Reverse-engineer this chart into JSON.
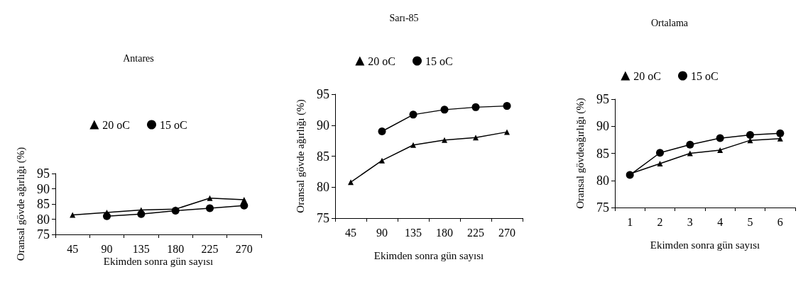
{
  "chart_data": [
    {
      "type": "line",
      "title": "Antares",
      "xlabel": "Ekimden sonra gün sayısı",
      "ylabel": "Oransal gövde ağırlığı (%)",
      "categories": [
        "45",
        "90",
        "135",
        "180",
        "225",
        "270"
      ],
      "ylim": [
        75,
        95
      ],
      "yticks": [
        75,
        80,
        85,
        90,
        95
      ],
      "grid": false,
      "legend": "top",
      "series": [
        {
          "name": "20 oC",
          "color": "#000000",
          "marker": "triangle",
          "values": [
            81.4,
            82.2,
            83.0,
            83.3,
            86.9,
            86.4
          ]
        },
        {
          "name": "15 oC",
          "color": "#000000",
          "marker": "circle",
          "values": [
            null,
            81.0,
            81.7,
            82.8,
            83.6,
            84.5
          ]
        }
      ]
    },
    {
      "type": "line",
      "title": "Sarı-85",
      "xlabel": "Ekimden sonra gün sayısı",
      "ylabel": "Oransal gövde ağırlığı (%)",
      "categories": [
        "45",
        "90",
        "135",
        "180",
        "225",
        "270"
      ],
      "ylim": [
        75,
        95
      ],
      "yticks": [
        75,
        80,
        85,
        90,
        95
      ],
      "grid": false,
      "legend": "top",
      "series": [
        {
          "name": "20 oC",
          "color": "#000000",
          "marker": "triangle",
          "values": [
            80.8,
            84.3,
            86.8,
            87.6,
            88.0,
            88.9
          ]
        },
        {
          "name": "15 oC",
          "color": "#000000",
          "marker": "circle",
          "values": [
            null,
            89.0,
            91.7,
            92.5,
            92.9,
            93.1
          ]
        }
      ]
    },
    {
      "type": "line",
      "title": "Ortalama",
      "xlabel": "Ekimden sonra gün sayısı",
      "ylabel": "Oransal gövdeağırlığı (%)",
      "categories": [
        "1",
        "2",
        "3",
        "4",
        "5",
        "6"
      ],
      "ylim": [
        75,
        95
      ],
      "yticks": [
        75,
        80,
        85,
        90,
        95
      ],
      "grid": false,
      "legend": "top",
      "series": [
        {
          "name": "20 oC",
          "color": "#000000",
          "marker": "triangle",
          "values": [
            81.2,
            83.1,
            85.0,
            85.6,
            87.4,
            87.7
          ]
        },
        {
          "name": "15 oC",
          "color": "#000000",
          "marker": "circle",
          "values": [
            81.0,
            85.1,
            86.6,
            87.8,
            88.4,
            88.7
          ]
        }
      ]
    }
  ]
}
